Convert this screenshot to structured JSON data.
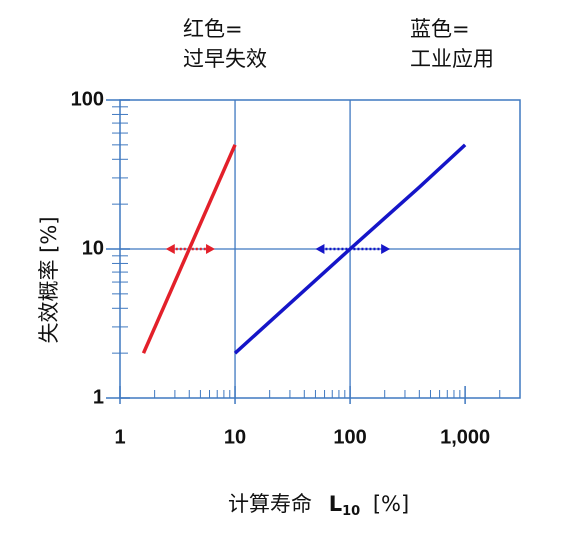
{
  "chart_data": {
    "type": "line",
    "xlabel": "计算寿命",
    "xlabel_symbol": "L",
    "xlabel_subscript": "10",
    "xlabel_unit": "[%]",
    "ylabel": "失效概率  [%]",
    "xscale": "log",
    "yscale": "log",
    "xlim": [
      1,
      3000
    ],
    "ylim": [
      1,
      100
    ],
    "xticks": [
      1,
      10,
      100,
      {
        "value": 1000,
        "label": "1,000"
      }
    ],
    "yticks": [
      1,
      10,
      100
    ],
    "xminor": [
      2,
      3,
      4,
      5,
      6,
      7,
      8,
      9,
      20,
      30,
      40,
      50,
      60,
      70,
      80,
      90,
      200,
      300,
      400,
      500,
      600,
      700,
      800,
      900,
      2000,
      3000
    ],
    "yminor": [
      2,
      3,
      4,
      5,
      6,
      7,
      8,
      9,
      20,
      30,
      40,
      50,
      60,
      70,
      80,
      90
    ],
    "xgrid": [
      10,
      100
    ],
    "ygrid": [
      10
    ],
    "frame_color": "#3f78c0",
    "series": [
      {
        "name": "过早失效",
        "color_label": "红色=",
        "color": "#e3202a",
        "x": [
          1.6,
          10
        ],
        "values": [
          2,
          50
        ],
        "range": {
          "x": [
            2.5,
            6.7
          ],
          "y": 10
        }
      },
      {
        "name": "工业应用",
        "color_label": "蓝色=",
        "color": "#1515c8",
        "x": [
          10,
          100,
          400,
          1000
        ],
        "values": [
          2,
          10,
          26,
          50
        ],
        "range": {
          "x": [
            50,
            223
          ],
          "y": 10
        }
      }
    ]
  }
}
